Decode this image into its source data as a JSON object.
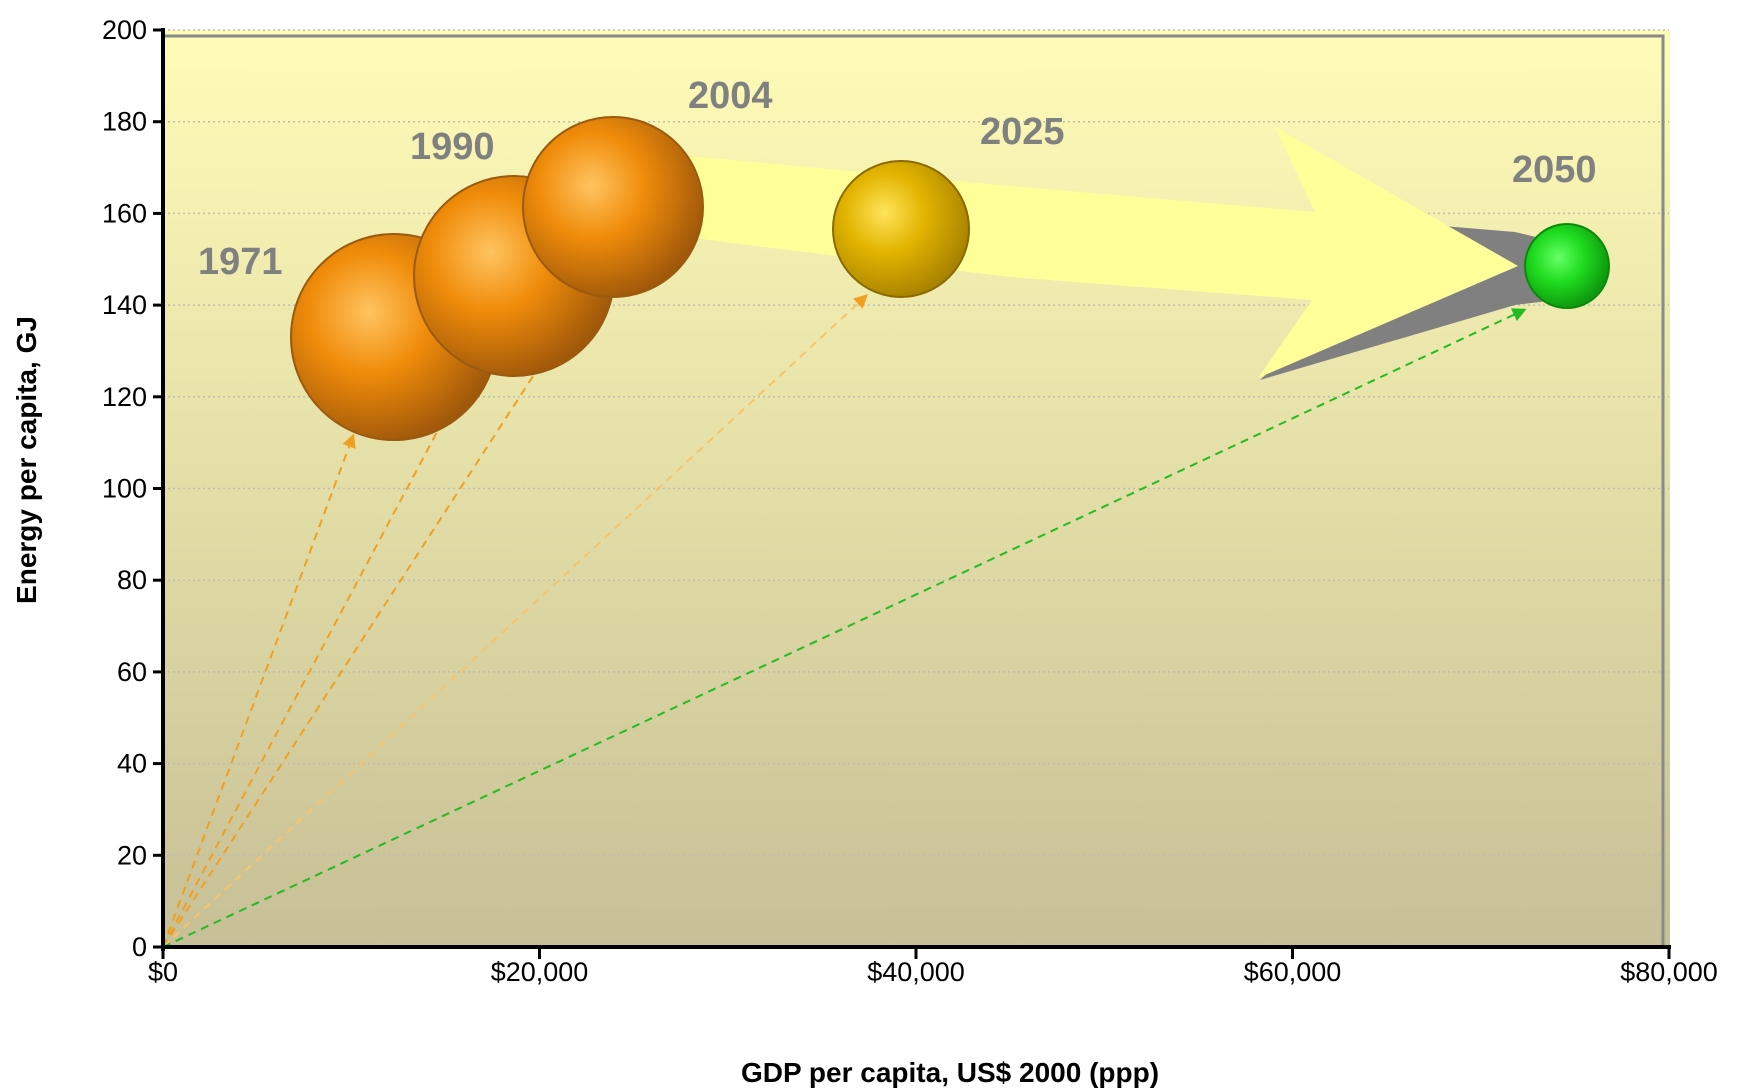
{
  "chart_data": {
    "type": "scatter",
    "title": "",
    "xlabel": "GDP per capita, US$ 2000 (ppp)",
    "ylabel": "Energy per capita, GJ",
    "xlim": [
      0,
      80000
    ],
    "ylim": [
      0,
      200
    ],
    "x_ticks": [
      0,
      20000,
      40000,
      60000,
      80000
    ],
    "x_tick_labels": [
      "$0",
      "$20,000",
      "$40,000",
      "$60,000",
      "$80,000"
    ],
    "y_ticks": [
      0,
      20,
      40,
      60,
      80,
      100,
      120,
      140,
      160,
      180,
      200
    ],
    "y_tick_labels": [
      "0",
      "20",
      "40",
      "60",
      "80",
      "100",
      "120",
      "140",
      "160",
      "180",
      "200"
    ],
    "grid": true,
    "points": [
      {
        "label": "1971",
        "x": 12000,
        "y": 134,
        "size": 1.0,
        "color": "#e38a14"
      },
      {
        "label": "1990",
        "x": 18500,
        "y": 146,
        "size": 0.95,
        "color": "#e38a14"
      },
      {
        "label": "2004",
        "x": 24000,
        "y": 161,
        "size": 0.88,
        "color": "#e38a14"
      },
      {
        "label": "2025",
        "x": 39500,
        "y": 156,
        "size": 0.68,
        "color": "#d8a800"
      },
      {
        "label": "2050",
        "x": 74500,
        "y": 148,
        "size": 0.42,
        "color": "#22cc22"
      }
    ],
    "colors": {
      "plot_bg_top": "#fffcb8",
      "plot_bg_bottom": "#c7bf96",
      "arrow_fill": "#ffff99",
      "arrow_shadow": "#808080",
      "orange_ray": "#f0a020",
      "green_ray": "#22bb22"
    }
  }
}
